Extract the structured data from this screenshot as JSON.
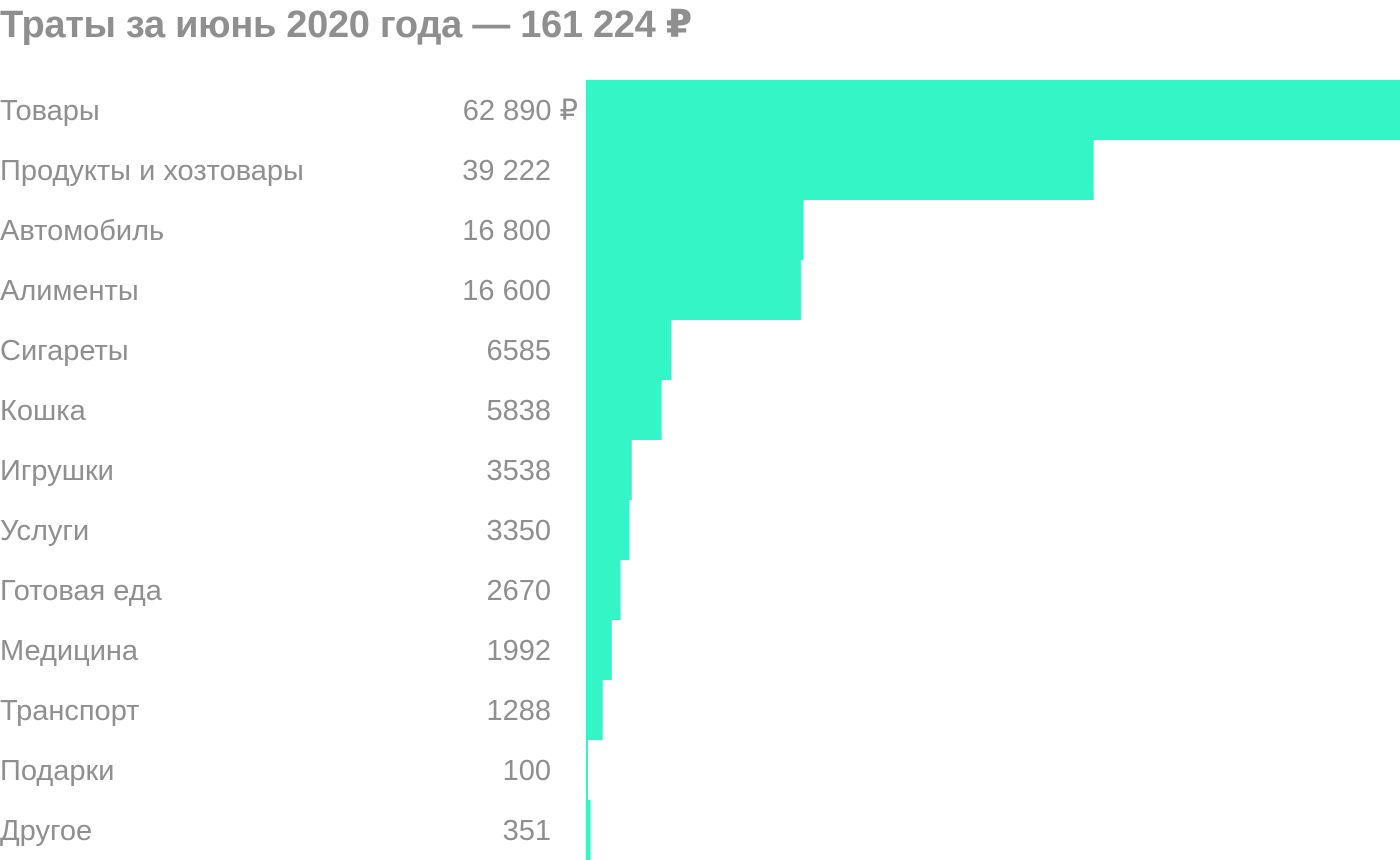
{
  "chart_data": {
    "type": "bar",
    "orientation": "horizontal",
    "title": "Траты за июнь 2020 года — 161 224 ₽",
    "categories": [
      "Товары",
      "Продукты и хозтовары",
      "Автомобиль",
      "Алименты",
      "Сигареты",
      "Кошка",
      "Игрушки",
      "Услуги",
      "Готовая еда",
      "Медицина",
      "Транспорт",
      "Подарки",
      "Другое"
    ],
    "values": [
      62890,
      39222,
      16800,
      16600,
      6585,
      5838,
      3538,
      3350,
      2670,
      1992,
      1288,
      100,
      351
    ],
    "value_labels": [
      "62 890 ₽",
      "39 222",
      "16 800",
      "16 600",
      "6585",
      "5838",
      "3538",
      "3350",
      "2670",
      "1992",
      "1288",
      "100",
      "351"
    ],
    "xlabel": "",
    "ylabel": "",
    "grid": false,
    "legend": "none",
    "bar_color": "#33f5c5",
    "text_color": "#8f8f8f"
  }
}
